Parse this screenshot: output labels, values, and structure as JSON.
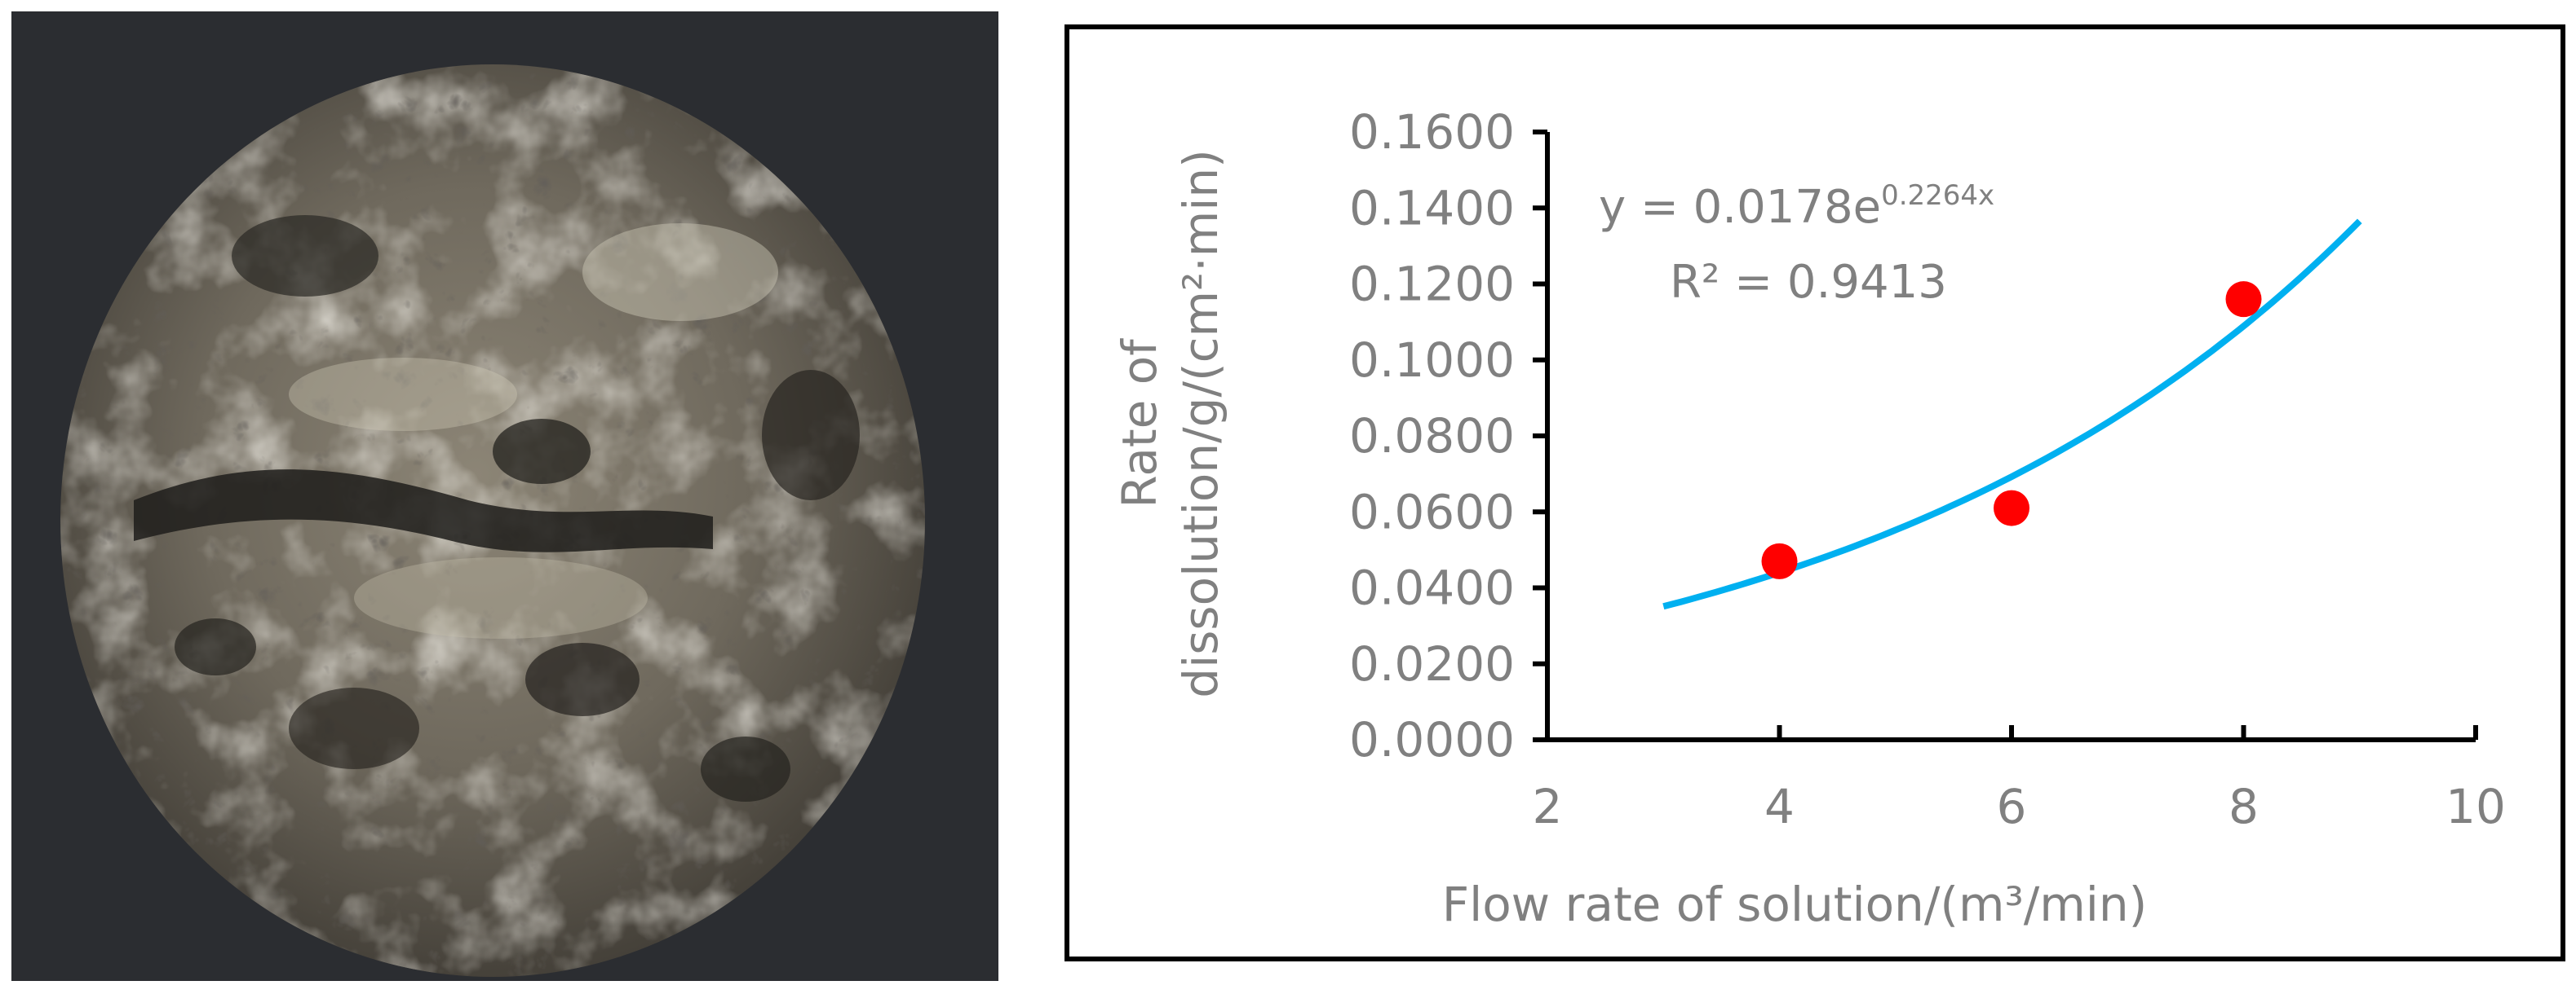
{
  "chart_data": {
    "type": "scatter",
    "title": "",
    "xlabel": "Flow rate of solution/(m³/min)",
    "ylabel_line1": "Rate of",
    "ylabel_line2": "dissolution/g/(cm²·min)",
    "xlim": [
      2,
      10
    ],
    "ylim": [
      0,
      0.16
    ],
    "x_ticks": [
      "2",
      "4",
      "6",
      "8",
      "10"
    ],
    "y_ticks": [
      "0.0000",
      "0.0200",
      "0.0400",
      "0.0600",
      "0.0800",
      "0.1000",
      "0.1200",
      "0.1400",
      "0.1600"
    ],
    "points": [
      {
        "x": 4,
        "y": 0.047
      },
      {
        "x": 6,
        "y": 0.061
      },
      {
        "x": 8,
        "y": 0.116
      }
    ],
    "trendline": {
      "type": "exponential",
      "a": 0.0178,
      "b": 0.2264,
      "x_range": [
        3,
        9
      ]
    },
    "equation_base": "y = 0.0178e",
    "equation_exponent": "0.2264x",
    "r_squared": "R² = 0.9413",
    "colors": {
      "points": "#ff0000",
      "trendline": "#00b0f0",
      "text": "#808080",
      "axis": "#000000"
    },
    "grid": false,
    "legend": "none"
  }
}
